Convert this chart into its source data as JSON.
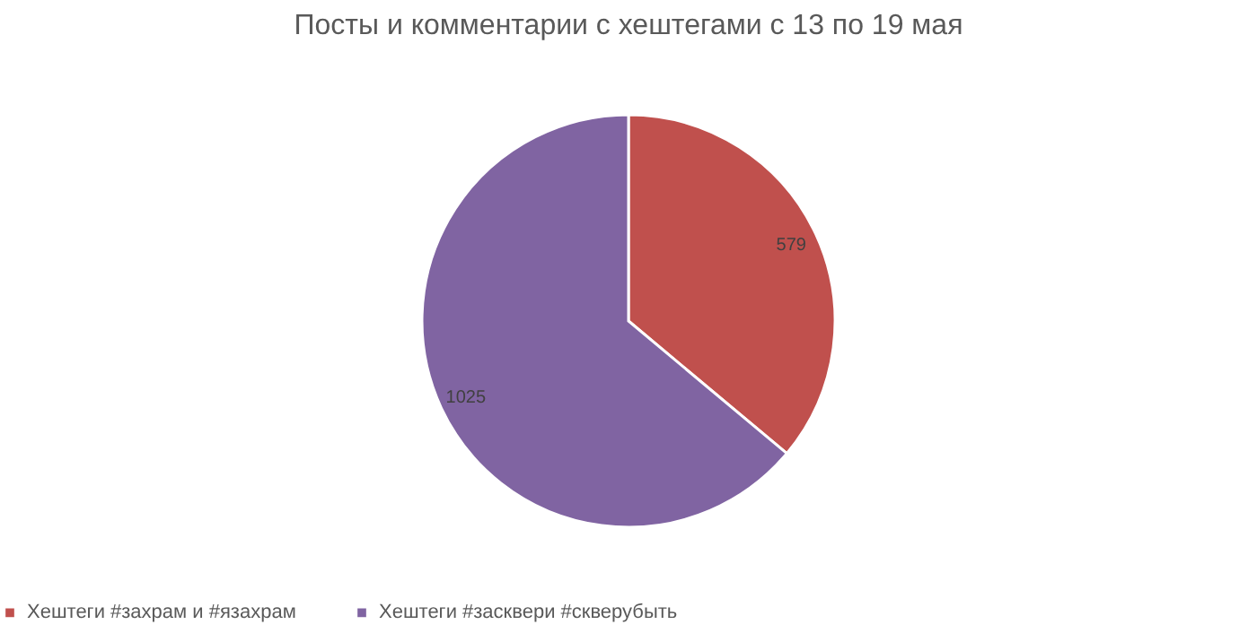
{
  "chart_data": {
    "type": "pie",
    "title": "Посты и комментарии с хештегами с 13 по 19 мая",
    "categories": [
      "Хештеги #захрам и #язахрам",
      "Хештеги #засквери #скверубыть"
    ],
    "values": [
      579,
      1025
    ],
    "colors": [
      "#c0504d",
      "#8064a2"
    ],
    "data_labels": true,
    "legend": "bottom"
  }
}
